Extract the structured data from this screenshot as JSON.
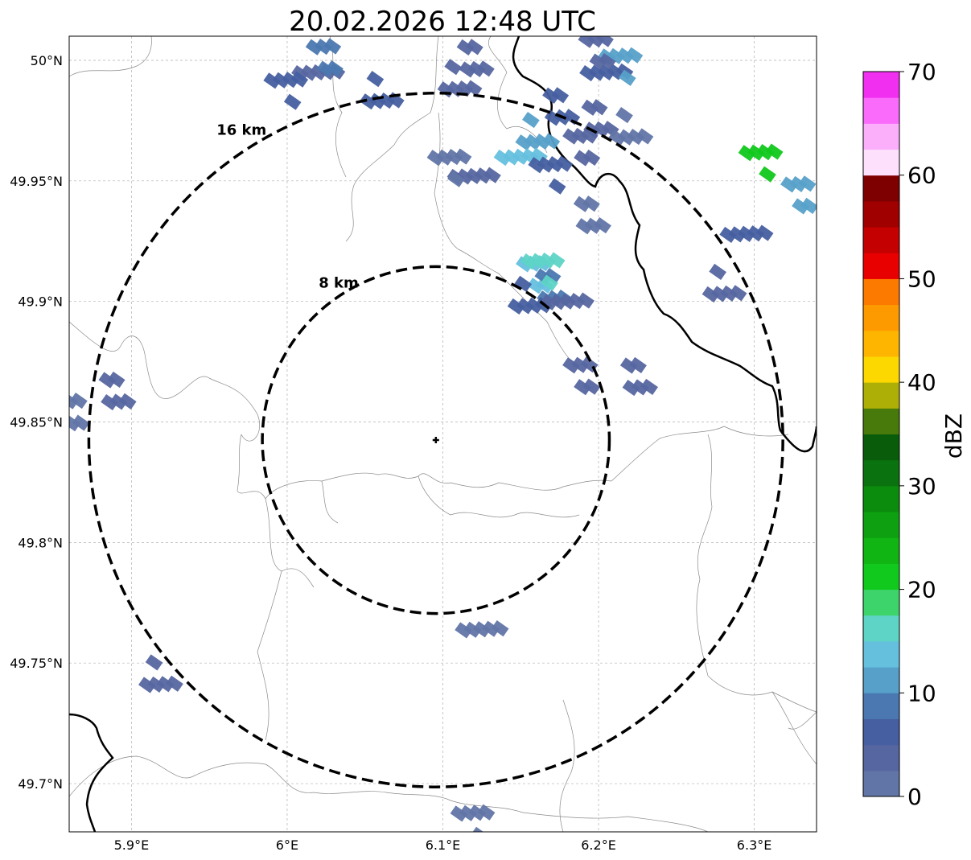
{
  "map": {
    "title": "20.02.2026 12:48 UTC",
    "lon_range": [
      5.86,
      6.34
    ],
    "lat_range": [
      49.68,
      50.01
    ],
    "x_ticks": [
      {
        "value": 5.9,
        "label": "5.9°E"
      },
      {
        "value": 6.0,
        "label": "6°E"
      },
      {
        "value": 6.1,
        "label": "6.1°E"
      },
      {
        "value": 6.2,
        "label": "6.2°E"
      },
      {
        "value": 6.3,
        "label": "6.3°E"
      }
    ],
    "y_ticks": [
      {
        "value": 49.7,
        "label": "49.7°N"
      },
      {
        "value": 49.75,
        "label": "49.75°N"
      },
      {
        "value": 49.8,
        "label": "49.8°N"
      },
      {
        "value": 49.85,
        "label": "49.85°N"
      },
      {
        "value": 49.9,
        "label": "49.9°N"
      },
      {
        "value": 49.95,
        "label": "49.95°N"
      },
      {
        "value": 50.0,
        "label": "50°N"
      }
    ],
    "grid": true,
    "radar_site": {
      "lon": 6.0955,
      "lat": 49.8425
    },
    "range_rings": [
      {
        "radius_km": 8,
        "label": "8 km"
      },
      {
        "radius_km": 16,
        "label": "16 km"
      }
    ],
    "echoes": [
      {
        "lon": 6.06,
        "lat": 49.985,
        "value": 6
      },
      {
        "lon": 6.02,
        "lat": 49.995,
        "value": 4
      },
      {
        "lon": 6.0,
        "lat": 49.99,
        "value": 5
      },
      {
        "lon": 6.025,
        "lat": 50.002,
        "value": 8
      },
      {
        "lon": 6.12,
        "lat": 50.0,
        "value": 3
      },
      {
        "lon": 6.11,
        "lat": 49.99,
        "value": 4
      },
      {
        "lon": 6.205,
        "lat": 49.995,
        "value": 5
      },
      {
        "lon": 6.215,
        "lat": 50.0,
        "value": 11
      },
      {
        "lon": 6.2,
        "lat": 50.005,
        "value": 3
      },
      {
        "lon": 6.175,
        "lat": 49.98,
        "value": 6
      },
      {
        "lon": 6.16,
        "lat": 49.968,
        "value": 12
      },
      {
        "lon": 6.15,
        "lat": 49.96,
        "value": 14
      },
      {
        "lon": 6.17,
        "lat": 49.955,
        "value": 5
      },
      {
        "lon": 6.19,
        "lat": 49.965,
        "value": 4
      },
      {
        "lon": 6.2,
        "lat": 49.975,
        "value": 3
      },
      {
        "lon": 6.22,
        "lat": 49.97,
        "value": 2
      },
      {
        "lon": 6.12,
        "lat": 49.952,
        "value": 3
      },
      {
        "lon": 6.105,
        "lat": 49.958,
        "value": 2
      },
      {
        "lon": 6.16,
        "lat": 49.912,
        "value": 13
      },
      {
        "lon": 6.17,
        "lat": 49.905,
        "value": 9
      },
      {
        "lon": 6.155,
        "lat": 49.9,
        "value": 5
      },
      {
        "lon": 6.18,
        "lat": 49.9,
        "value": 3
      },
      {
        "lon": 6.165,
        "lat": 49.915,
        "value": 16
      },
      {
        "lon": 6.19,
        "lat": 49.87,
        "value": 4
      },
      {
        "lon": 6.225,
        "lat": 49.868,
        "value": 3
      },
      {
        "lon": 6.28,
        "lat": 49.905,
        "value": 4
      },
      {
        "lon": 6.295,
        "lat": 49.928,
        "value": 5
      },
      {
        "lon": 6.305,
        "lat": 49.96,
        "value": 20
      },
      {
        "lon": 6.33,
        "lat": 49.945,
        "value": 11
      },
      {
        "lon": 5.89,
        "lat": 49.862,
        "value": 3
      },
      {
        "lon": 5.918,
        "lat": 49.743,
        "value": 3
      },
      {
        "lon": 6.125,
        "lat": 49.764,
        "value": 2
      },
      {
        "lon": 6.12,
        "lat": 49.686,
        "value": 2
      },
      {
        "lon": 5.862,
        "lat": 49.855,
        "value": 2
      },
      {
        "lon": 6.195,
        "lat": 49.935,
        "value": 2
      }
    ]
  },
  "colorbar": {
    "label": "dBZ",
    "min": 0,
    "max": 70,
    "step": 2.5,
    "ticks": [
      "0",
      "10",
      "20",
      "30",
      "40",
      "50",
      "60",
      "70"
    ],
    "colors": [
      "#6175a6",
      "#5666a0",
      "#465fa0",
      "#4b78b0",
      "#56a0c9",
      "#65c0de",
      "#5ed4c6",
      "#3ed46c",
      "#11c81c",
      "#10b514",
      "#0ea010",
      "#0c8c0c",
      "#0a720e",
      "#085c0a",
      "#477a0a",
      "#aeaf06",
      "#fdd700",
      "#fdb500",
      "#fd9a00",
      "#fd7a00",
      "#e80000",
      "#c50000",
      "#a10000",
      "#7e0000",
      "#fce0fc",
      "#fbaffb",
      "#fb6bfb",
      "#f12ff1"
    ]
  }
}
